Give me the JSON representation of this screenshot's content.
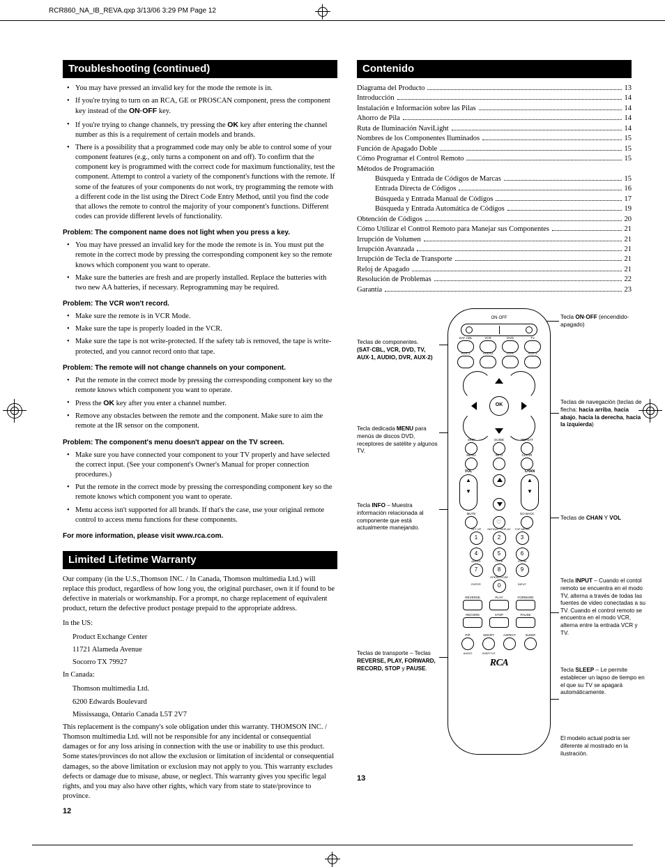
{
  "header_slug": "RCR860_NA_IB_REVA.qxp   3/13/06   3:29 PM   Page 12",
  "left": {
    "sec1": "Troubleshooting (continued)",
    "b1": [
      "You may have pressed an invalid key for the mode the remote is in.",
      "If you're trying to turn on an RCA, GE or PROSCAN component, press the component key instead of the ON·OFF key.",
      "If you're trying to change channels, try pressing the OK key after entering the channel number as this is a requirement of certain models and brands.",
      "There is a possibility that a programmed code may only be able to control some of your component features (e.g., only turns a component on and off). To confirm that the component key is programmed with the correct code for maximum functionality, test the component. Attempt to control a variety of the component's functions with the remote. If some of the features of your components do not work, try programming the remote with a different code in the list using the Direct Code Entry Method, until you find the code that allows the remote to control the majority of your component's functions. Different codes can provide different levels of functionality."
    ],
    "p1": "Problem: The component name does not light when you press a key.",
    "b2": [
      "You may have pressed an invalid key for the mode the remote is in. You must put the remote in the correct mode by pressing the corresponding component key so the remote knows which component you want to operate.",
      "Make sure the batteries are fresh and are properly installed. Replace the batteries with two new AA batteries, if necessary. Reprogramming may be required."
    ],
    "p2": "Problem: The VCR won't record.",
    "b3": [
      "Make sure the remote is in VCR Mode.",
      "Make sure the tape is properly loaded in the VCR.",
      "Make sure the tape is not write-protected. If the safety tab is removed, the tape is write-protected, and you cannot record onto that tape."
    ],
    "p3": "Problem: The remote will not change channels on your component.",
    "b4": [
      "Put the remote in the correct mode by pressing the corresponding component key so the remote knows which component you want to operate.",
      "Press the OK key after you enter a channel number.",
      "Remove any obstacles between the remote and the component. Make sure to aim the remote at the IR sensor on the component."
    ],
    "p4": "Problem: The component's menu doesn't appear on the TV screen.",
    "b5": [
      "Make sure you have connected your component to your TV properly and have selected the correct input. (See your component's Owner's Manual for proper connection procedures.)",
      "Put the remote in the correct mode by pressing the corresponding component key so the remote knows which component you want to operate.",
      "Menu access isn't supported for all brands. If that's the case, use your original remote control to access menu functions for these components."
    ],
    "more": "For more information, please visit www.rca.com.",
    "sec2": "Limited Lifetime Warranty",
    "w1": "Our company (in the U.S.,Thomson INC. / In Canada, Thomson multimedia Ltd.) will replace this product, regardless of how long you, the original purchaser, own it if found to be defective in materials or workmanship. For a prompt, no charge replacement of equivalent product, return the defective product postage prepaid to the appropriate address.",
    "us_l": "In the US:",
    "us": [
      "Product Exchange Center",
      "11721 Alameda Avenue",
      "Socorro TX 79927"
    ],
    "ca_l": "In Canada:",
    "ca": [
      "Thomson multimedia Ltd.",
      "6200 Edwards Boulevard",
      "Mississauga, Ontario Canada L5T 2V7"
    ],
    "w2": "This replacement is the company's sole obligation under this warranty. THOMSON INC. / Thomson multimedia Ltd. will not be responsible for any incidental or consequential damages or for any loss arising in connection with the use or inability to use this product. Some states/provinces do not allow the exclusion or limitation of incidental or consequential damages, so the above limitation or exclusion may not apply to you. This warranty excludes defects or damage due to misuse, abuse, or neglect. This warranty gives you specific legal rights, and you may also have other rights, which vary from state to state/province to province.",
    "pg": "12"
  },
  "right": {
    "sec": "Contenido",
    "toc": [
      {
        "l": "Diagrama del Producto",
        "p": "13"
      },
      {
        "l": "Introducción",
        "p": "14"
      },
      {
        "l": "Instalación e Información sobre las Pilas",
        "p": "14"
      },
      {
        "l": "Ahorro de Pila",
        "p": "14"
      },
      {
        "l": "Ruta de Iluminación NaviLight",
        "p": "14"
      },
      {
        "l": "Nombres de los Componentes Iluminados",
        "p": "15"
      },
      {
        "l": "Función de Apagado Doble",
        "p": "15"
      },
      {
        "l": "Cómo Programar el Control Remoto",
        "p": "15"
      },
      {
        "l": "Métodos de Programación",
        "p": ""
      },
      {
        "l": "Búsqueda y Entrada de Códigos de Marcas",
        "p": "15",
        "i": 1
      },
      {
        "l": "Entrada Directa de Códigos",
        "p": "16",
        "i": 1
      },
      {
        "l": "Búsqueda y Entrada Manual de Códigos",
        "p": "17",
        "i": 1
      },
      {
        "l": "Búsqueda y Entrada Automática de Códigos",
        "p": "19",
        "i": 1
      },
      {
        "l": "Obtención de Códigos",
        "p": "20"
      },
      {
        "l": "Cómo Utilizar el Control Remoto para Manejar sus Componentes",
        "p": "21"
      },
      {
        "l": "Irrupción de Volumen",
        "p": "21"
      },
      {
        "l": "Irrupción Avanzada",
        "p": "21"
      },
      {
        "l": "Irrupción de Tecla de Transporte",
        "p": "21"
      },
      {
        "l": "Reloj de Apagado",
        "p": "21"
      },
      {
        "l": "Resolución de Problemas",
        "p": "22"
      },
      {
        "l": "Garantía",
        "p": "23"
      }
    ],
    "pg": "13",
    "comp_rows": [
      [
        "SAT·CBL",
        "VCR",
        "DVD",
        "TV"
      ],
      [
        "AUX·1",
        "AUDIO",
        "DVR",
        "AUX·2"
      ]
    ],
    "mid_rows": [
      [
        "SKIP",
        "GUIDE",
        "REPEAT"
      ],
      [
        "MENU",
        "INFO",
        "CLEAR"
      ]
    ],
    "mute_row": [
      "MUTE",
      "",
      "GO BACK"
    ],
    "num_top": [
      "SET UP",
      "INSTANT REPLAY",
      "TOP MENU"
    ],
    "num_mid": [
      "ANGLE",
      "TITLE",
      "ZOOM"
    ],
    "num_bot": [
      "ENTER",
      "OPEN/CLOSE",
      "INPUT"
    ],
    "transport": [
      [
        "REVERSE",
        "PLAY",
        "FORWARD"
      ],
      [
        "RECORD",
        "STOP",
        "PAUSE"
      ]
    ],
    "bottom": [
      "PIP",
      "SMART",
      "ASPECT",
      "SLEEP"
    ],
    "bottom2": [
      "AUDIO",
      "SUBTITLE",
      "",
      ""
    ],
    "logo": "RCA",
    "call": {
      "onoff": "Tecla <b>ON·OFF</b> (encendido-apagado)",
      "comp": "Teclas de componentes. <b>(SAT·CBL, VCR, DVD, TV, AUX·1, AUDIO, DVR, AUX·2)</b>",
      "nav": "Teclas de navegación (teclas de flecha: <b>hacia arriba</b>, <b>hacia abajo</b>, <b>hacia la derecha</b>, <b>hacia la izquierda</b>)",
      "menu": "Tecla dedicada <b>MENU</b> para menús de discos DVD, receptores de satélite y algunos TV.",
      "info": "Tecla <b>INFO</b> – Muestra información relacionada al componente que está actualmente manejando.",
      "chanvol": "Teclas de <b>CHAN</b> Y <b>VOL</b>",
      "input": "Tecla <b>INPUT</b> – Cuando el contol remoto se encuentra en el modo TV, alterna a través de todas las fuentes de video conectadas a su TV. Cuando el control remoto se encuentra en el modo VCR, alterna entre la entrada VCR y TV.",
      "trans": "Teclas de transporte – Teclas <b>REVERSE, PLAY, FORWARD, RECORD, STOP</b> y <b>PAUSE</b>.",
      "sleep": "Tecla <b>SLEEP</b> – Le permite establecer un lapso de tiempo en el que su TV se apagará automáticamente.",
      "note": "El modelo actual podría ser diferente al mostrado en la ilustración."
    }
  }
}
